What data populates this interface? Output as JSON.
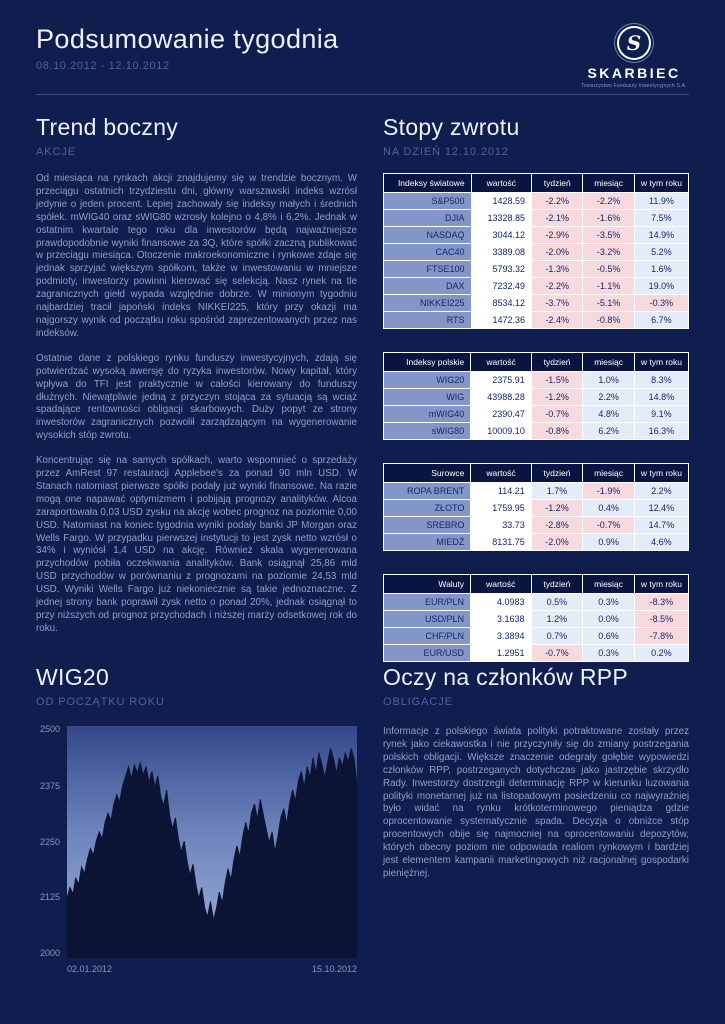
{
  "page": {
    "title": "Podsumowanie tygodnia",
    "date_range": "08.10.2012 - 12.10.2012"
  },
  "logo": {
    "monogram": "S",
    "brand": "SKARBIEC",
    "tagline": "Towarzystwo Funduszy Inwestycyjnych S.A."
  },
  "left_section": {
    "title": "Trend boczny",
    "subtitle": "AKCJE",
    "paragraphs": [
      "Od miesiąca na rynkach akcji znajdujemy się w trendzie bocznym. W przeciągu ostatnich trzydziestu dni, główny warszawski indeks wzrósł jedynie o jeden procent. Lepiej zachowały się indeksy małych i średnich spółek. mWIG40 oraz sWIG80 wzrosły kolejno o 4,8% i 6,2%. Jednak w ostatnim kwartale tego roku dla inwestorów będą najważniejsze prawdopodobnie wyniki finansowe za 3Q, które spółki zaczną publikować w przeciągu miesiąca. Otoczenie makroekonomiczne i rynkowe zdaje się jednak sprzyjać większym spółkom, także w inwestowaniu w mniejsze podmioty, inwestorzy powinni kierować się selekcją. Nasz rynek na tle zagranicznych giełd wypada względnie dobrze. W minionym tygodniu najbardziej tracił japoński indeks NIKKEI225, który przy okazji ma najgorszy wynik od początku roku spośród zaprezentowanych przez nas indeksów.",
      "Ostatnie dane z polskiego rynku funduszy inwestycyjnych, zdają się potwierdzać wysoką awersję do ryzyka inwestorów. Nowy kapitał, który wpływa do TFI jest praktycznie w całości kierowany do funduszy dłużnych. Niewątpliwie jedną z przyczyn stojąca za sytuacją są wciąż spadające rentowności obligacji skarbowych. Duży popyt ze strony inwestorów zagranicznych pozwolił zarządzającym na wygenerowanie wysokich stóp zwrotu.",
      "Koncentrując się na samych spółkach, warto wspomnieć o sprzedaży przez AmRest 97 restauracji Applebee's za ponad 90 mln USD. W Stanach natomiast pierwsze spółki podały już wyniki finansowe. Na razie mogą one napawać optymizmem i pobijają prognozy analityków. Alcoa zaraportowała 0,03 USD zysku na akcję wobec prognoz na poziomie 0,00 USD. Natomiast na koniec tygodnia wyniki podały banki JP Morgan oraz Wells Fargo. W przypadku pierwszej instytucji to jest zysk netto wzrósł o 34% i wyniósł 1,4 USD na akcję. Również skala wygenerowana przychodów pobiła oczekiwania analityków. Bank osiągnął 25,86 mld USD przychodów w porównaniu z prognozami na poziomie 24,53 mld USD. Wyniki Wells Fargo już niekoniecznie są takie jednoznaczne. Z jednej strony bank poprawił zysk netto o ponad 20%, jednak osiągnął to przy niższych od prognoz przychodach i niższej marży odsetkowej rok do roku."
    ]
  },
  "right_section": {
    "title": "Stopy zwrotu",
    "subtitle": "NA DZIEŃ 12.10.2012",
    "tables": [
      {
        "header": [
          "Indeksy światowe",
          "wartość",
          "tydzień",
          "miesiąc",
          "w tym roku"
        ],
        "rows": [
          [
            "S&P500",
            "1428.59",
            "-2.2%",
            "-2.2%",
            "11.9%"
          ],
          [
            "DJIA",
            "13328.85",
            "-2.1%",
            "-1.6%",
            "7.5%"
          ],
          [
            "NASDAQ",
            "3044.12",
            "-2.9%",
            "-3.5%",
            "14.9%"
          ],
          [
            "CAC40",
            "3389.08",
            "-2.0%",
            "-3.2%",
            "5.2%"
          ],
          [
            "FTSE100",
            "5793.32",
            "-1.3%",
            "-0.5%",
            "1.6%"
          ],
          [
            "DAX",
            "7232.49",
            "-2.2%",
            "-1.1%",
            "19.0%"
          ],
          [
            "NIKKEI225",
            "8534.12",
            "-3.7%",
            "-5.1%",
            "-0.3%"
          ],
          [
            "RTS",
            "1472.36",
            "-2.4%",
            "-0.8%",
            "6.7%"
          ]
        ]
      },
      {
        "header": [
          "Indeksy polskie",
          "wartość",
          "tydzień",
          "miesiąc",
          "w tym roku"
        ],
        "rows": [
          [
            "WIG20",
            "2375.91",
            "-1.5%",
            "1.0%",
            "8.3%"
          ],
          [
            "WIG",
            "43988.28",
            "-1.2%",
            "2.2%",
            "14.8%"
          ],
          [
            "mWIG40",
            "2390.47",
            "-0.7%",
            "4.8%",
            "9.1%"
          ],
          [
            "sWIG80",
            "10009.10",
            "-0.8%",
            "6.2%",
            "16.3%"
          ]
        ]
      },
      {
        "header": [
          "Surowce",
          "wartość",
          "tydzień",
          "miesiąc",
          "w tym roku"
        ],
        "rows": [
          [
            "ROPA BRENT",
            "114.21",
            "1.7%",
            "-1.9%",
            "2.2%"
          ],
          [
            "ZŁOTO",
            "1759.95",
            "-1.2%",
            "0.4%",
            "12.4%"
          ],
          [
            "SREBRO",
            "33.73",
            "-2.8%",
            "-0.7%",
            "14.7%"
          ],
          [
            "MIEDŹ",
            "8131.75",
            "-2.0%",
            "0.9%",
            "4.6%"
          ]
        ]
      },
      {
        "header": [
          "Waluty",
          "wartość",
          "tydzień",
          "miesiąc",
          "w tym roku"
        ],
        "rows": [
          [
            "EUR/PLN",
            "4.0983",
            "0.5%",
            "0.3%",
            "-8.3%"
          ],
          [
            "USD/PLN",
            "3.1638",
            "1.2%",
            "0.0%",
            "-8.5%"
          ],
          [
            "CHF/PLN",
            "3.3894",
            "0.7%",
            "0.6%",
            "-7.8%"
          ],
          [
            "EUR/USD",
            "1.2951",
            "-0.7%",
            "0.3%",
            "0.2%"
          ]
        ]
      }
    ]
  },
  "bottom_left": {
    "title": "WIG20",
    "subtitle": "OD POCZĄTKU ROKU"
  },
  "bottom_right": {
    "title": "Oczy na członków RPP",
    "subtitle": "OBLIGACJE",
    "paragraph": "Informacje z polskiego świata polityki potraktowane zostały przez rynek jako ciekawostka i nie przyczyniły się do zmiany postrzegania polskich obligacji. Większe znaczenie odegrały gołębie wypowiedzi członków RPP, postrzeganych dotychczas jako jastrzębie skrzydło Rady. Inwestorzy dostrzegli determinację RPP w kierunku luzowania polityki monetarnej już na listopadowym posiedzeniu co najwyraźniej było widać na rynku krótkoterminowego pieniądza gdzie oprocentowanie systematycznie spada. Decyzja o obniżce stóp procentowych obije się najmocniej na oprocentowaniu depozytów, których obecny poziom nie odpowiada realiom rynkowym i bardziej jest elementem kampanii marketingowych niż racjonalnej gospodarki pieniężnej."
  },
  "chart_data": {
    "type": "area",
    "title": "WIG20 od początku roku",
    "xlabel": "",
    "ylabel": "",
    "x_range": [
      "02.01.2012",
      "15.10.2012"
    ],
    "ylim": [
      2000,
      2500
    ],
    "y_ticks": [
      2000,
      2125,
      2250,
      2375,
      2500
    ],
    "grid": false,
    "values": [
      2128,
      2152,
      2138,
      2172,
      2158,
      2196,
      2182,
      2214,
      2236,
      2222,
      2252,
      2272,
      2256,
      2292,
      2312,
      2296,
      2332,
      2352,
      2336,
      2372,
      2392,
      2412,
      2386,
      2416,
      2398,
      2420,
      2394,
      2412,
      2378,
      2402,
      2368,
      2392,
      2348,
      2328,
      2362,
      2308,
      2278,
      2302,
      2258,
      2228,
      2252,
      2208,
      2178,
      2202,
      2158,
      2128,
      2152,
      2108,
      2088,
      2122,
      2082,
      2106,
      2142,
      2118,
      2162,
      2192,
      2168,
      2212,
      2242,
      2218,
      2262,
      2292,
      2268,
      2312,
      2332,
      2298,
      2342,
      2308,
      2278,
      2248,
      2272,
      2228,
      2262,
      2302,
      2322,
      2288,
      2332,
      2362,
      2338,
      2382,
      2402,
      2368,
      2412,
      2388,
      2432,
      2398,
      2442,
      2418,
      2388,
      2422,
      2452,
      2428,
      2398,
      2432,
      2412,
      2442,
      2422,
      2452,
      2430,
      2376
    ]
  },
  "colors": {
    "page_background": "#101d4f",
    "heading_text": "#eef1f8",
    "muted_text": "#4e62a0",
    "body_text": "#939fc4",
    "table_header_bg": "#0a1441",
    "name_cell_bg": "#8496c7",
    "negative_bg": "#f8d9de",
    "positive_bg": "#e4ecf8",
    "chart_area_fill": "#0b1434"
  }
}
